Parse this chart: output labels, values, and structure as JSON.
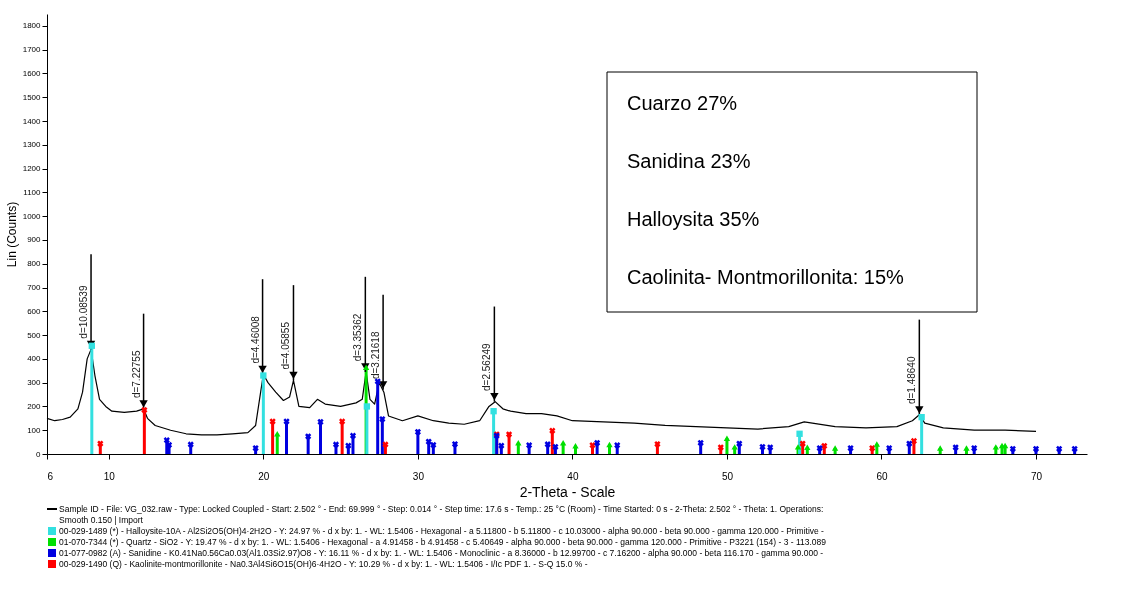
{
  "chart_data": {
    "type": "line",
    "xlabel": "2-Theta - Scale",
    "ylabel": "Lin (Counts)",
    "xlim": [
      6,
      73.3
    ],
    "xticks": [
      6,
      10,
      20,
      30,
      40,
      50,
      60,
      70
    ],
    "ylim": [
      0,
      1850
    ],
    "yticks": [
      0,
      100,
      200,
      300,
      400,
      500,
      600,
      700,
      800,
      900,
      1000,
      1100,
      1200,
      1300,
      1400,
      1500,
      1600,
      1700,
      1800
    ],
    "grid": false,
    "legend": "bottom",
    "series": [
      {
        "name": "Sample ID - File: VG_032.raw - Type: Locked Coupled - Start: 2.502 ° - End: 69.999 ° - Step: 0.014 ° - Step time: 17.6 s - Temp.: 25 °C (Room) - Time Started: 0 s - 2-Theta: 2.502 ° - Theta: 1. Operations: Smooth 0.150 | Import",
        "color": "#000000",
        "marker": "none",
        "x": [
          6.0,
          6.5,
          7.0,
          7.5,
          8.0,
          8.3,
          8.6,
          8.85,
          9.1,
          9.4,
          9.8,
          10.2,
          11.0,
          11.8,
          12.25,
          12.5,
          13.0,
          14.0,
          15.0,
          16.0,
          17.0,
          18.0,
          19.0,
          19.5,
          19.8,
          20.0,
          20.3,
          20.8,
          21.3,
          21.7,
          21.95,
          22.3,
          23.0,
          23.5,
          24.0,
          25.0,
          26.0,
          26.4,
          26.65,
          26.9,
          27.2,
          27.5,
          27.8,
          28.1,
          29.0,
          30.0,
          31.0,
          32.0,
          33.0,
          34.0,
          34.6,
          35.0,
          35.5,
          36.0,
          37.0,
          38.0,
          39.0,
          40.0,
          42.0,
          44.0,
          46.0,
          48.0,
          50.0,
          52.0,
          54.0,
          55.0,
          57.0,
          59.0,
          61.0,
          62.0,
          62.45,
          62.8,
          64.0,
          66.0,
          68.0,
          70.0
        ],
        "values": [
          150,
          140,
          145,
          155,
          190,
          260,
          400,
          440,
          330,
          230,
          200,
          180,
          175,
          180,
          190,
          150,
          120,
          100,
          85,
          80,
          80,
          85,
          90,
          120,
          250,
          335,
          300,
          260,
          225,
          240,
          310,
          200,
          195,
          230,
          210,
          200,
          215,
          230,
          345,
          230,
          210,
          300,
          260,
          160,
          140,
          160,
          140,
          130,
          125,
          140,
          200,
          220,
          190,
          180,
          170,
          170,
          160,
          140,
          135,
          130,
          120,
          115,
          110,
          105,
          115,
          135,
          115,
          110,
          115,
          140,
          165,
          130,
          110,
          100,
          100,
          95
        ]
      },
      {
        "name": "00-029-1489 (*) - Halloysite-10A - Al2Si2O5(OH)4·2H2O - Y: 24.97 % - d x by: 1. - WL: 1.5406 - Hexagonal - a 5.11800 - b 5.11800 - c 10.03000 - alpha 90.000 - beta 90.000 - gamma 120.000 - Primitive -",
        "color": "#33e0e0",
        "marker": "square",
        "type": "lollipop",
        "x": [
          8.9,
          20.0,
          26.7,
          34.9,
          54.7,
          62.6
        ],
        "values": [
          455,
          330,
          200,
          180,
          85,
          155
        ]
      },
      {
        "name": "01-070-7344 (*) - Quartz - SiO2 - Y: 19.47 % - d x by: 1. - WL: 1.5406 - Hexagonal - a 4.91458 - b 4.91458 - c 5.40649 - alpha 90.000 - beta 90.000 - gamma 120.000 - Primitive - P3221 (154) - 3 - 113.089",
        "color": "#00e000",
        "marker": "triangle",
        "type": "lollipop",
        "x": [
          20.9,
          26.65,
          36.5,
          39.4,
          40.2,
          42.4,
          50.0,
          50.5,
          54.6,
          55.2,
          57.0,
          59.7,
          63.8,
          65.5,
          67.4,
          67.8,
          68.0
        ],
        "values": [
          85,
          365,
          47,
          47,
          35,
          40,
          66,
          30,
          30,
          28,
          25,
          42,
          25,
          25,
          30,
          36,
          36
        ]
      },
      {
        "name": "01-077-0982 (A) - Sanidine - K0.41Na0.56Ca0.03(Al1.03Si2.97)O8 - Y: 16.11 % - d x by: 1. - WL: 1.5406 - Monoclinic - a 8.36000 - b 12.99700 - c 7.16200 - alpha 90.000 - beta 116.170 - gamma 90.000 -",
        "color": "#0000e0",
        "marker": "cross",
        "type": "lollipop",
        "x": [
          13.75,
          13.9,
          15.3,
          19.5,
          21.5,
          22.9,
          23.7,
          24.7,
          25.5,
          25.8,
          27.4,
          27.7,
          30.0,
          30.7,
          31.0,
          32.4,
          35.1,
          35.4,
          37.2,
          38.4,
          38.9,
          41.6,
          42.9,
          48.3,
          50.8,
          52.3,
          52.8,
          56.0,
          58.0,
          60.5,
          61.8,
          64.8,
          66.0,
          68.5,
          70.0,
          71.5,
          72.5
        ],
        "values": [
          58,
          38,
          40,
          25,
          137,
          74,
          135,
          40,
          35,
          77,
          305,
          147,
          93,
          52,
          38,
          42,
          77,
          35,
          37,
          41,
          30,
          47,
          37,
          47,
          44,
          30,
          28,
          25,
          25,
          25,
          44,
          28,
          25,
          22,
          22,
          22,
          22
        ]
      },
      {
        "name": "00-029-1490 (Q) - Kaolinite-montmorillonite - Na0.3Al4Si6O15(OH)6·4H2O - Y: 10.29 % - d x by: 1. - WL: 1.5406 - I/Ic PDF 1. - S-Q 15.0 % -",
        "color": "#ff0000",
        "marker": "cross",
        "type": "lollipop",
        "x": [
          9.45,
          12.3,
          20.6,
          25.1,
          27.9,
          35.1,
          35.9,
          38.7,
          41.3,
          45.5,
          49.6,
          54.9,
          56.3,
          59.4,
          62.1
        ],
        "values": [
          44,
          185,
          137,
          137,
          40,
          83,
          83,
          98,
          37,
          42,
          28,
          44,
          34,
          25,
          55
        ]
      }
    ],
    "annotations": [
      {
        "text": "d=10.08539",
        "x": 8.85,
        "y": 440
      },
      {
        "text": "d=7.22755",
        "x": 12.25,
        "y": 190
      },
      {
        "text": "d=4.46008",
        "x": 19.95,
        "y": 335
      },
      {
        "text": "d=4.05855",
        "x": 21.95,
        "y": 310
      },
      {
        "text": "d=3.35362",
        "x": 26.6,
        "y": 345
      },
      {
        "text": "d=3.21618",
        "x": 27.75,
        "y": 270
      },
      {
        "text": "d=2.56249",
        "x": 34.95,
        "y": 220
      },
      {
        "text": "d=1.48640",
        "x": 62.45,
        "y": 165
      },
      "Cuarzo 27%",
      "Sanidina 23%",
      "Halloysita 35%",
      "Caolinita- Montmorillonita: 15%"
    ]
  }
}
